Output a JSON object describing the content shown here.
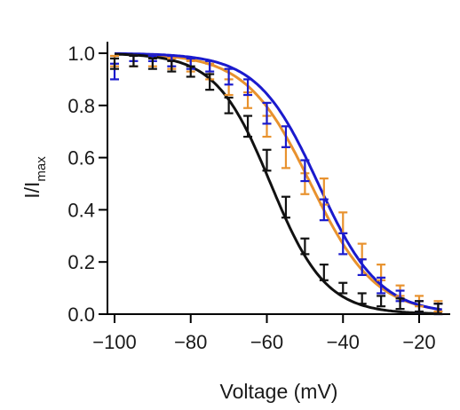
{
  "chart_data": {
    "type": "scatter",
    "title": "",
    "xlabel": "Voltage (mV)",
    "ylabel": {
      "main": "I/I",
      "sub": "max"
    },
    "xlim": [
      -100,
      -12
    ],
    "ylim": [
      0,
      1.0
    ],
    "xticks": [
      -100,
      -80,
      -60,
      -40,
      -20
    ],
    "xtick_labels": [
      "−100",
      "−80",
      "−60",
      "−40",
      "−20"
    ],
    "yticks": [
      0,
      0.2,
      0.4,
      0.6,
      0.8,
      1.0
    ],
    "ytick_labels": [
      "0.0",
      "0.2",
      "0.4",
      "0.6",
      "0.8",
      "1.0"
    ],
    "grid": false,
    "legend": "none",
    "series": [
      {
        "color": "#e8922e",
        "fit": {
          "model": "boltzmann",
          "v_half": -48.5,
          "k": 8.5
        },
        "x": [
          -100,
          -95,
          -90,
          -85,
          -80,
          -75,
          -70,
          -65,
          -60,
          -55,
          -50,
          -45,
          -40,
          -35,
          -30,
          -25,
          -20,
          -15
        ],
        "y": [
          0.97,
          0.97,
          0.97,
          0.96,
          0.95,
          0.93,
          0.87,
          0.82,
          0.72,
          0.6,
          0.5,
          0.47,
          0.35,
          0.24,
          0.16,
          0.09,
          0.05,
          0.03
        ],
        "err": [
          0.02,
          0.02,
          0.02,
          0.02,
          0.02,
          0.03,
          0.03,
          0.03,
          0.04,
          0.04,
          0.04,
          0.05,
          0.04,
          0.03,
          0.03,
          0.02,
          0.02,
          0.02
        ]
      },
      {
        "color": "#1a1acd",
        "fit": {
          "model": "boltzmann",
          "v_half": -46.5,
          "k": 8.0
        },
        "x": [
          -100,
          -95,
          -90,
          -85,
          -80,
          -75,
          -70,
          -65,
          -60,
          -55,
          -50,
          -45,
          -40,
          -35,
          -30,
          -25,
          -20,
          -15
        ],
        "y": [
          0.93,
          0.98,
          0.98,
          0.97,
          0.96,
          0.95,
          0.91,
          0.87,
          0.77,
          0.68,
          0.55,
          0.4,
          0.27,
          0.18,
          0.11,
          0.07,
          0.03,
          0.02
        ],
        "err": [
          0.03,
          0.01,
          0.01,
          0.02,
          0.02,
          0.02,
          0.03,
          0.03,
          0.04,
          0.04,
          0.04,
          0.04,
          0.04,
          0.03,
          0.03,
          0.02,
          0.02,
          0.02
        ]
      },
      {
        "color": "#111111",
        "fit": {
          "model": "boltzmann",
          "v_half": -59.0,
          "k": 7.2
        },
        "x": [
          -100,
          -95,
          -90,
          -85,
          -80,
          -75,
          -70,
          -65,
          -60,
          -55,
          -50,
          -45,
          -40,
          -35,
          -30,
          -25,
          -20,
          -15
        ],
        "y": [
          0.96,
          0.97,
          0.96,
          0.95,
          0.93,
          0.89,
          0.8,
          0.72,
          0.59,
          0.41,
          0.26,
          0.16,
          0.1,
          0.06,
          0.05,
          0.04,
          0.03,
          0.02
        ],
        "err": [
          0.02,
          0.02,
          0.02,
          0.02,
          0.02,
          0.03,
          0.03,
          0.04,
          0.04,
          0.04,
          0.03,
          0.03,
          0.02,
          0.02,
          0.02,
          0.02,
          0.02,
          0.02
        ]
      }
    ]
  }
}
